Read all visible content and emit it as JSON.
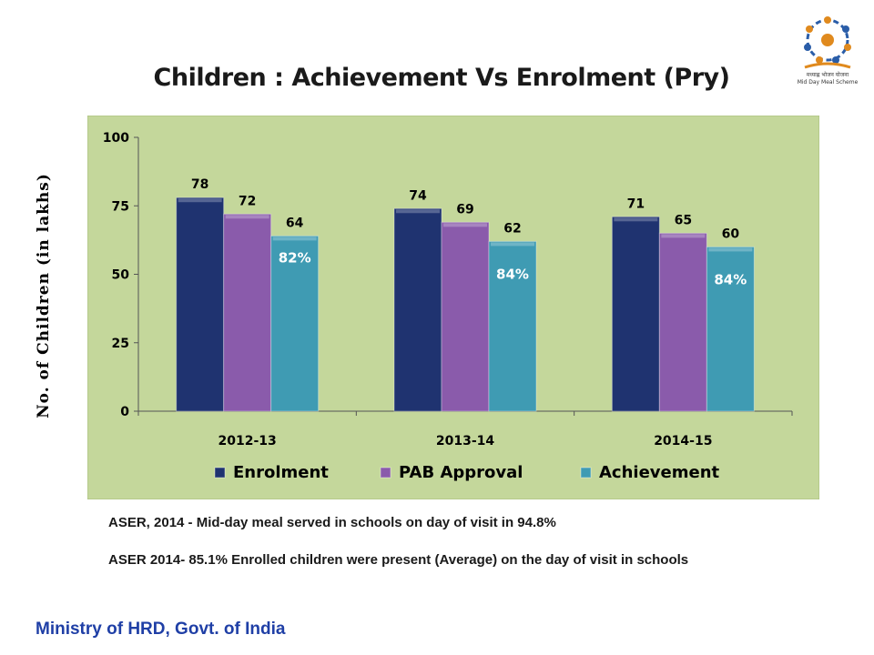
{
  "title": "Children : Achievement Vs Enrolment (Pry)",
  "logo_caption": "मध्याह्न भोजन योजना Mid Day Meal Scheme",
  "notes": [
    "ASER, 2014 - Mid-day meal served in schools on day of visit in 94.8%",
    "ASER 2014- 85.1% Enrolled children were present (Average) on the day of visit in schools"
  ],
  "footer": "Ministry of HRD, Govt. of India",
  "colors": {
    "plot_bg": "#c4d79b",
    "enrolment": "#1f3370",
    "pab_approval": "#8a5bab",
    "achievement": "#3f9bb3",
    "percent_text": "#ffffff",
    "footer": "#1f3fa6"
  },
  "chart_data": {
    "type": "bar",
    "title": "Children : Achievement Vs Enrolment (Pry)",
    "ylabel": "No. of Children (in lakhs)",
    "xlabel": "",
    "categories": [
      "2012-13",
      "2013-14",
      "2014-15"
    ],
    "ylim": [
      0,
      100
    ],
    "yticks": [
      0,
      25,
      50,
      75,
      100
    ],
    "series": [
      {
        "name": "Enrolment",
        "values": [
          78,
          74,
          71
        ]
      },
      {
        "name": "PAB Approval",
        "values": [
          72,
          69,
          65
        ]
      },
      {
        "name": "Achievement",
        "values": [
          64,
          62,
          60
        ]
      }
    ],
    "annotations": [
      "82%",
      "84%",
      "84%"
    ],
    "legend": "bottom",
    "grid": false
  }
}
